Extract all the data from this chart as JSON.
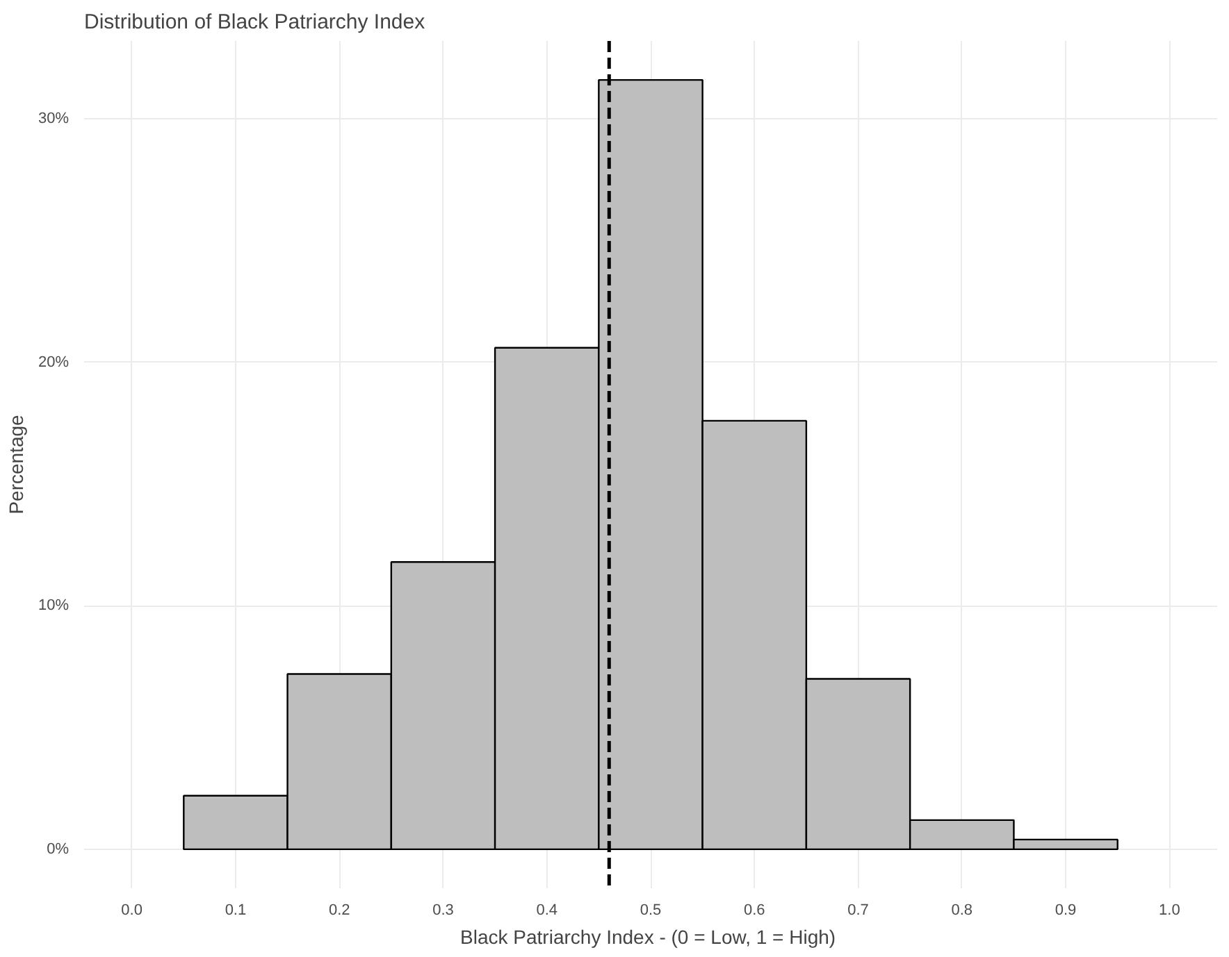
{
  "chart_data": {
    "type": "histogram",
    "title": "Distribution of Black Patriarchy Index",
    "xlabel": "Black Patriarchy Index -  (0 = Low, 1 = High)",
    "ylabel": "Percentage",
    "bins": [
      0.05,
      0.15,
      0.25,
      0.35,
      0.45,
      0.55,
      0.65,
      0.75,
      0.85,
      0.95
    ],
    "values": [
      2.2,
      7.2,
      11.8,
      20.6,
      31.6,
      17.6,
      7.0,
      1.2,
      0.4
    ],
    "color": "#bebebe",
    "xlim": [
      -0.046,
      1.046
    ],
    "ylim": [
      -1.6,
      33.2
    ],
    "xticks": [
      {
        "value": 0,
        "label": "0.0"
      },
      0.1,
      0.2,
      0.3,
      0.4,
      0.5,
      0.6,
      0.7,
      0.8,
      0.9,
      {
        "value": 1,
        "label": "1.0"
      }
    ],
    "yticks": [
      {
        "value": 0,
        "label": "0%"
      },
      {
        "value": 10,
        "label": "10%"
      },
      {
        "value": 20,
        "label": "20%"
      },
      {
        "value": 30,
        "label": "30%"
      }
    ],
    "grid": true,
    "ref_lines": [
      {
        "axis": "x",
        "value": 0.46,
        "label": null,
        "color": "#000000",
        "line_style": "dashed"
      }
    ]
  }
}
